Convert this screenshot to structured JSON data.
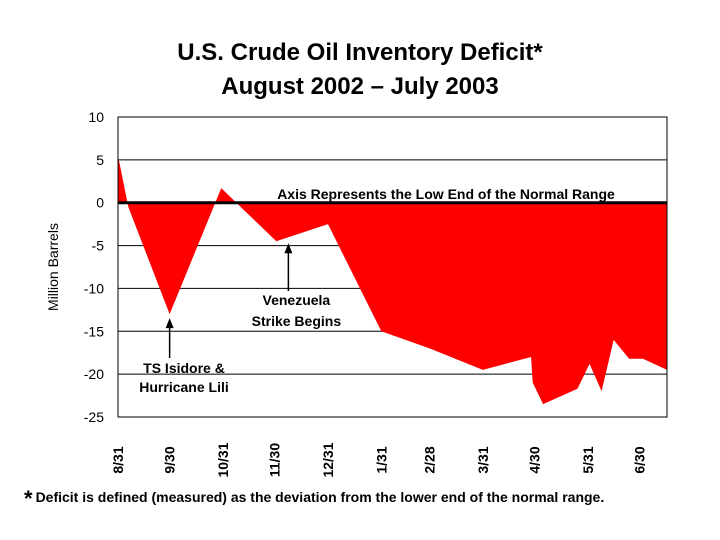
{
  "chart_data": {
    "type": "area",
    "title": "U.S. Crude Oil Inventory Deficit*",
    "subtitle": "August 2002 – July 2003",
    "ylabel": "Million Barrels",
    "xlabel": "",
    "ylim": [
      -25,
      10
    ],
    "yticks": [
      10,
      5,
      0,
      -5,
      -10,
      -15,
      -20,
      -25
    ],
    "grid": true,
    "fill_color": "#ff0000",
    "xticks": [
      {
        "label": "8/31",
        "x": 0
      },
      {
        "label": "9/30",
        "x": 30
      },
      {
        "label": "10/31",
        "x": 61
      },
      {
        "label": "11/30",
        "x": 91
      },
      {
        "label": "12/31",
        "x": 122
      },
      {
        "label": "1/31",
        "x": 153
      },
      {
        "label": "2/28",
        "x": 181
      },
      {
        "label": "3/31",
        "x": 212
      },
      {
        "label": "4/30",
        "x": 242
      },
      {
        "label": "5/31",
        "x": 273
      },
      {
        "label": "6/30",
        "x": 303
      }
    ],
    "xlim": [
      0,
      319
    ],
    "x": [
      0,
      6,
      30,
      60,
      92,
      122,
      153,
      181,
      212,
      240,
      241,
      247,
      267,
      274,
      281,
      288,
      297,
      305,
      319
    ],
    "values": [
      5.5,
      -0.5,
      -13,
      1.7,
      -4.5,
      -2.5,
      -15,
      -17,
      -19.5,
      -18,
      -21,
      -23.5,
      -21.7,
      -18.8,
      -22,
      -16,
      -18.2,
      -18.2,
      -19.5
    ],
    "annotations": [
      {
        "text": "Axis Represents the Low End of the Normal Range"
      },
      {
        "lines": [
          "Venezuela",
          "Strike Begins"
        ],
        "x": 99,
        "y": -4.5
      },
      {
        "lines": [
          "TS Isidore &",
          "Hurricane Lili"
        ],
        "x": 30,
        "y": -13
      }
    ]
  },
  "footnote": {
    "marker": "*",
    "text": "Deficit is defined (measured) as the deviation from the lower end of the normal range."
  }
}
